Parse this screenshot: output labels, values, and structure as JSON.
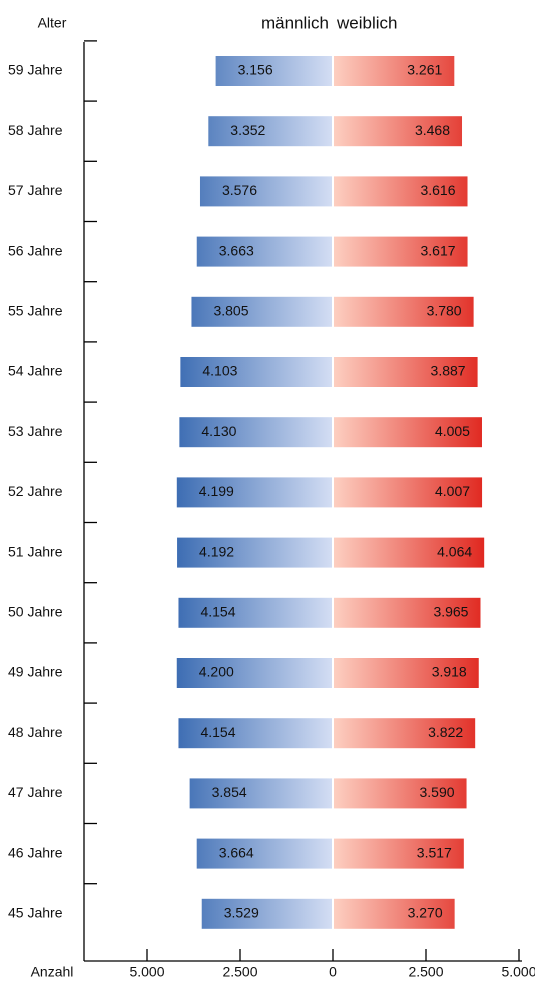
{
  "chart_data": {
    "type": "bar",
    "orientation": "horizontal-population-pyramid",
    "y_axis_title": "Alter",
    "x_axis_title": "Anzahl",
    "categories": [
      "59 Jahre",
      "58 Jahre",
      "57 Jahre",
      "56 Jahre",
      "55 Jahre",
      "54 Jahre",
      "53 Jahre",
      "52 Jahre",
      "51 Jahre",
      "50 Jahre",
      "49 Jahre",
      "48 Jahre",
      "47 Jahre",
      "46 Jahre",
      "45 Jahre"
    ],
    "series": [
      {
        "name": "männlich",
        "side": "left",
        "color_dark": "#3d6db3",
        "color_light": "#d4def4",
        "values": [
          3156,
          3352,
          3576,
          3663,
          3805,
          4103,
          4130,
          4199,
          4192,
          4154,
          4200,
          4154,
          3854,
          3664,
          3529
        ],
        "labels": [
          "3.156",
          "3.352",
          "3.576",
          "3.663",
          "3.805",
          "4.103",
          "4.130",
          "4.199",
          "4.192",
          "4.154",
          "4.200",
          "4.154",
          "3.854",
          "3.664",
          "3.529"
        ]
      },
      {
        "name": "weiblich",
        "side": "right",
        "color_dark": "#e02820",
        "color_light": "#fdd0c2",
        "values": [
          3261,
          3468,
          3616,
          3617,
          3780,
          3887,
          4005,
          4007,
          4064,
          3965,
          3918,
          3822,
          3590,
          3517,
          3270
        ],
        "labels": [
          "3.261",
          "3.468",
          "3.616",
          "3.617",
          "3.780",
          "3.887",
          "4.005",
          "4.007",
          "4.064",
          "3.965",
          "3.918",
          "3.822",
          "3.590",
          "3.517",
          "3.270"
        ]
      }
    ],
    "x_ticks": [
      {
        "value": -5000,
        "label": "5.000"
      },
      {
        "value": -2500,
        "label": "2.500"
      },
      {
        "value": 0,
        "label": "0"
      },
      {
        "value": 2500,
        "label": "2.500"
      },
      {
        "value": 5000,
        "label": "5.000"
      }
    ],
    "xlim": [
      -5000,
      5000
    ],
    "grid": false
  }
}
